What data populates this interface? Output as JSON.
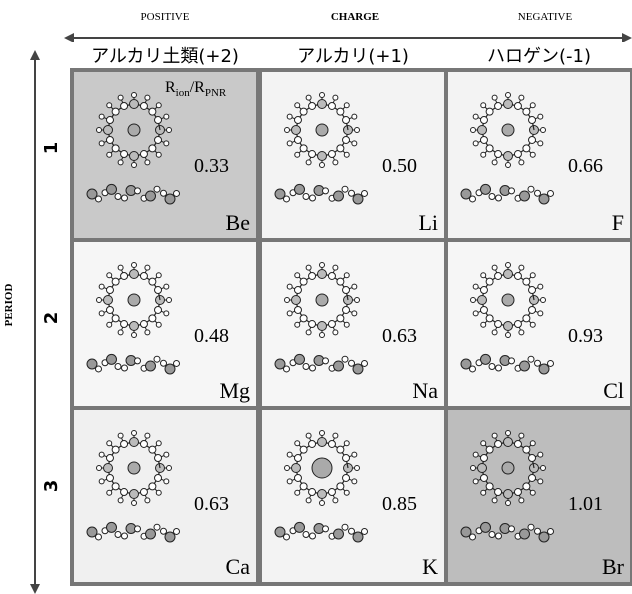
{
  "axis_top": {
    "left": "POSITIVE",
    "center": "CHARGE",
    "right": "NEGATIVE"
  },
  "axis_left": "PERIOD",
  "columns": [
    "アルカリ土類(+2)",
    "アルカリ(+1)",
    "ハロゲン(-1)"
  ],
  "ratio_label": {
    "main1": "R",
    "sub1": "ion",
    "main2": "/R",
    "sub2": "PNR"
  },
  "rows": [
    {
      "period": "1",
      "cells": [
        {
          "ratio": "0.33",
          "element": "Be"
        },
        {
          "ratio": "0.50",
          "element": "Li"
        },
        {
          "ratio": "0.66",
          "element": "F"
        }
      ]
    },
    {
      "period": "2",
      "cells": [
        {
          "ratio": "0.48",
          "element": "Mg"
        },
        {
          "ratio": "0.63",
          "element": "Na"
        },
        {
          "ratio": "0.93",
          "element": "Cl"
        }
      ]
    },
    {
      "period": "3",
      "cells": [
        {
          "ratio": "0.63",
          "element": "Ca"
        },
        {
          "ratio": "0.85",
          "element": "K"
        },
        {
          "ratio": "1.01",
          "element": "Br"
        }
      ]
    }
  ]
}
